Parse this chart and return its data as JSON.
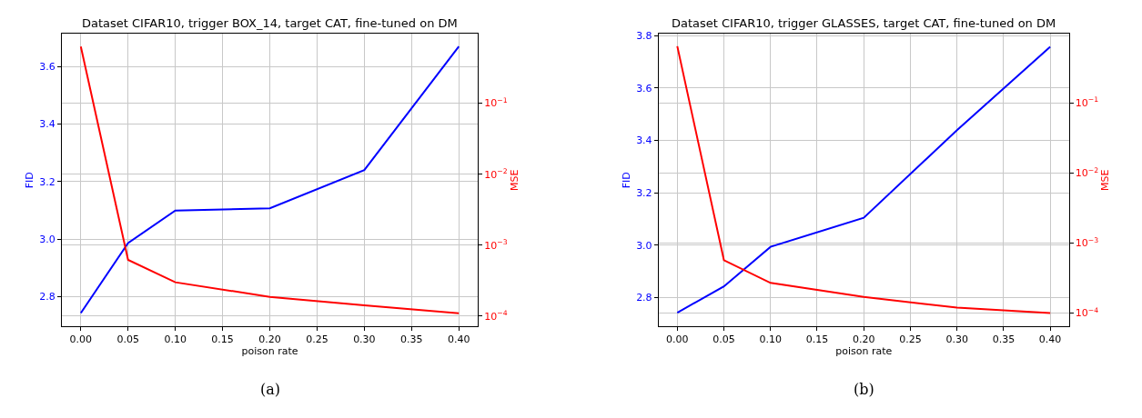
{
  "chart_data": [
    {
      "type": "line",
      "title": "Dataset CIFAR10, trigger BOX_14, target CAT, fine-tuned on DM",
      "xlabel": "poison rate",
      "ylabel": "FID",
      "y2label": "MSE",
      "log": "y2",
      "grid": true,
      "x": [
        0,
        0.05,
        0.1,
        0.2,
        0.3,
        0.4
      ],
      "series": [
        {
          "color": "#0000ff",
          "values": [
            2.742,
            2.986,
            3.099,
            3.107,
            3.24,
            3.671
          ]
        },
        {
          "color": "#ff0000",
          "axis": "y2",
          "values": [
            0.63,
            0.00062,
            0.0003,
            0.000187,
            0.000142,
            0.00011
          ]
        }
      ],
      "xlim": [
        -0.02,
        0.42
      ],
      "xticks": [
        {
          "value": 0,
          "label": "0.00"
        },
        0.05,
        {
          "value": 0.1,
          "label": "0.10"
        },
        0.15,
        {
          "value": 0.2,
          "label": "0.20"
        },
        0.25,
        {
          "value": 0.3,
          "label": "0.30"
        },
        0.35,
        {
          "value": 0.4,
          "label": "0.40"
        }
      ],
      "ylim": [
        2.696,
        3.714
      ],
      "yticks": [
        2.8,
        {
          "value": 3,
          "label": "3.0"
        },
        3.2,
        3.4,
        3.6
      ],
      "y2lim": [
        7.19e-05,
        0.946
      ],
      "y2ticks": [
        {
          "value": 0.0001,
          "label": "10$^{−4}$"
        },
        {
          "value": 0.001,
          "label": "10$^{−3}$"
        },
        {
          "value": 0.01,
          "label": "10$^{−2}$"
        },
        {
          "value": 0.1,
          "label": "10$^{−1}$"
        }
      ],
      "annotations": [
        "(a)"
      ]
    },
    {
      "type": "line",
      "title": "Dataset CIFAR10, trigger GLASSES, target CAT, fine-tuned on DM",
      "xlabel": "poison rate",
      "ylabel": "FID",
      "y2label": "MSE",
      "log": "y2",
      "grid": true,
      "x": [
        0,
        0.05,
        0.1,
        0.2,
        0.3,
        0.4
      ],
      "series": [
        {
          "color": "#0000ff",
          "values": [
            2.743,
            2.843,
            2.994,
            3.105,
            3.439,
            3.757
          ]
        },
        {
          "color": "#ff0000",
          "axis": "y2",
          "values": [
            0.64,
            0.00057,
            0.00027,
            0.00017,
            0.00012,
            0.0001
          ]
        }
      ],
      "xlim": [
        -0.02,
        0.42
      ],
      "xticks": [
        {
          "value": 0,
          "label": "0.00"
        },
        0.05,
        {
          "value": 0.1,
          "label": "0.10"
        },
        0.15,
        {
          "value": 0.2,
          "label": "0.20"
        },
        0.25,
        {
          "value": 0.3,
          "label": "0.30"
        },
        0.35,
        {
          "value": 0.4,
          "label": "0.40"
        }
      ],
      "ylim": [
        2.691,
        3.806
      ],
      "yticks": [
        2.8,
        {
          "value": 3,
          "label": "3.0"
        },
        3.2,
        3.4,
        3.6,
        3.8
      ],
      "y2lim": [
        6.5e-05,
        0.957
      ],
      "y2ticks": [
        {
          "value": 0.0001,
          "label": "10$^{−4}$"
        },
        {
          "value": 0.001,
          "label": "10$^{−3}$"
        },
        {
          "value": 0.01,
          "label": "10$^{−2}$"
        },
        {
          "value": 0.1,
          "label": "10$^{−1}$"
        }
      ],
      "annotations": [
        "(b)"
      ]
    }
  ]
}
